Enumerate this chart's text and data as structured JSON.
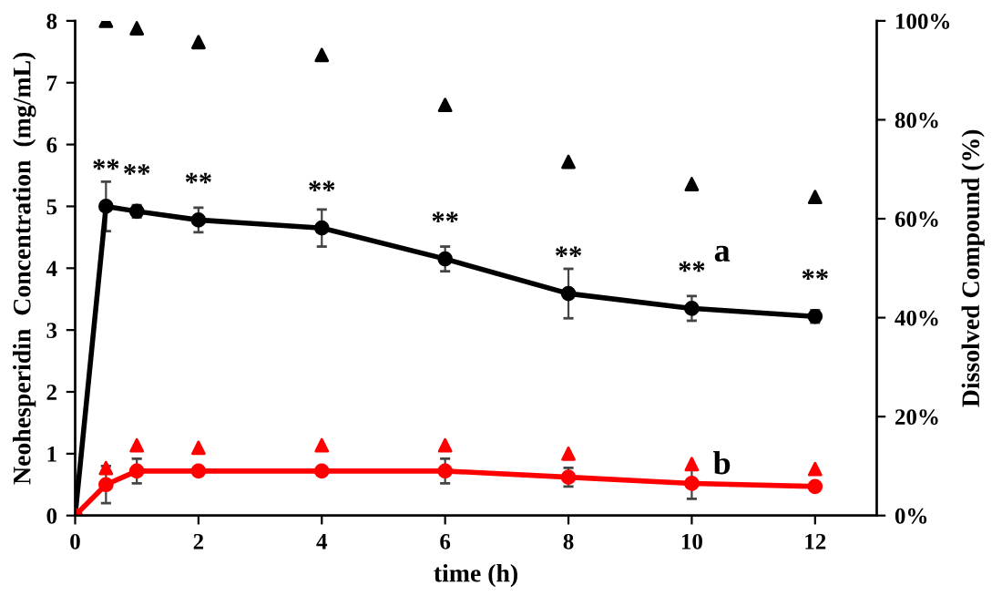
{
  "chart_data": {
    "type": "line",
    "xlabel": "time (h)",
    "ylabel": "Neohesperidin  Concentration  (mg/mL)",
    "y2label": "Dissolved Compound (%)",
    "x": [
      0,
      0.5,
      1,
      2,
      4,
      6,
      8,
      10,
      12
    ],
    "xlim": [
      0,
      13
    ],
    "xticks": [
      0,
      2,
      4,
      6,
      8,
      10,
      12
    ],
    "ylim": [
      0,
      8
    ],
    "yticks": [
      0,
      1,
      2,
      3,
      4,
      5,
      6,
      7,
      8
    ],
    "y2lim": [
      0,
      100
    ],
    "y2ticks": [
      {
        "value": 0,
        "label": "0%"
      },
      {
        "value": 20,
        "label": "20%"
      },
      {
        "value": 40,
        "label": "40%"
      },
      {
        "value": 60,
        "label": "60%"
      },
      {
        "value": 80,
        "label": "80%"
      },
      {
        "value": 100,
        "label": "100%"
      }
    ],
    "grid": false,
    "legend": false,
    "series": [
      {
        "color": "#000000",
        "marker": "circle",
        "values": [
          0,
          5.0,
          4.92,
          4.78,
          4.65,
          4.15,
          3.59,
          3.35,
          3.22
        ],
        "errors": [
          null,
          0.4,
          0.1,
          0.2,
          0.3,
          0.2,
          0.4,
          0.2,
          0.1
        ]
      },
      {
        "color": "#ff0000",
        "marker": "circle",
        "values": [
          0,
          0.5,
          0.72,
          0.72,
          0.72,
          0.72,
          0.62,
          0.52,
          0.47
        ],
        "errors": [
          null,
          0.3,
          0.2,
          null,
          null,
          0.2,
          0.15,
          0.25,
          null
        ]
      },
      {
        "type": "scatter",
        "axis": "y2",
        "color": "#000000",
        "marker": "triangle",
        "values": [
          null,
          100,
          98.5,
          95.7,
          93.1,
          83,
          71.5,
          67,
          64.4
        ]
      },
      {
        "type": "scatter",
        "axis": "y2",
        "color": "#ff0000",
        "marker": "triangle",
        "values": [
          null,
          9.6,
          14.2,
          13.7,
          14.2,
          14.2,
          12.5,
          10.4,
          9.4
        ]
      }
    ],
    "annotations": [
      {
        "text": "**",
        "x": 0.5,
        "y": 5.0
      },
      {
        "text": "**",
        "x": 1,
        "y": 4.92
      },
      {
        "text": "**",
        "x": 2,
        "y": 4.78
      },
      {
        "text": "**",
        "x": 4,
        "y": 4.65
      },
      {
        "text": "**",
        "x": 6,
        "y": 4.15
      },
      {
        "text": "**",
        "x": 8,
        "y": 3.59
      },
      {
        "text": "**",
        "x": 10,
        "y": 3.35
      },
      {
        "text": "**",
        "x": 12,
        "y": 3.22
      },
      "a",
      "b"
    ]
  }
}
